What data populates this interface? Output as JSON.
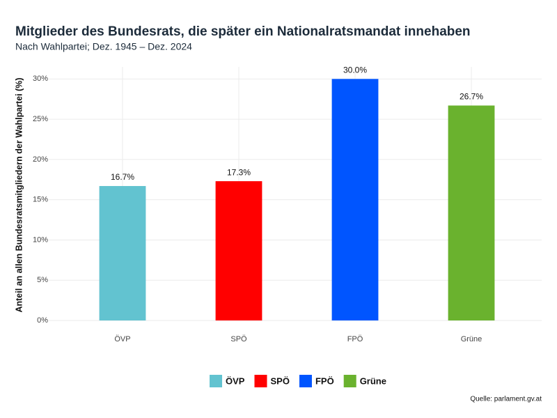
{
  "chart_data": {
    "type": "bar",
    "title": "Mitglieder des Bundesrats, die später ein Nationalratsmandat innehaben",
    "subtitle": "Nach Wahlpartei; Dez. 1945 – Dez. 2024",
    "y_label": "Anteil an allen Bundesratsmitgliedern der Wahlpartei (%)",
    "categories": [
      "ÖVP",
      "SPÖ",
      "FPÖ",
      "Grüne"
    ],
    "values": [
      16.7,
      17.3,
      30.0,
      26.7
    ],
    "value_labels": [
      "16.7%",
      "17.3%",
      "30.0%",
      "26.7%"
    ],
    "colors": [
      "#62c3d0",
      "#ff0000",
      "#0055ff",
      "#6ab22e"
    ],
    "ylim": [
      0,
      31.5
    ],
    "yticks": [
      {
        "value": 0,
        "label": "0%"
      },
      {
        "value": 5,
        "label": "5%"
      },
      {
        "value": 10,
        "label": "10%"
      },
      {
        "value": 15,
        "label": "15%"
      },
      {
        "value": 20,
        "label": "20%"
      },
      {
        "value": 25,
        "label": "25%"
      },
      {
        "value": 30,
        "label": "30%"
      }
    ],
    "grid": true,
    "legend": "bottom",
    "source": "Quelle: parlament.gv.at"
  }
}
